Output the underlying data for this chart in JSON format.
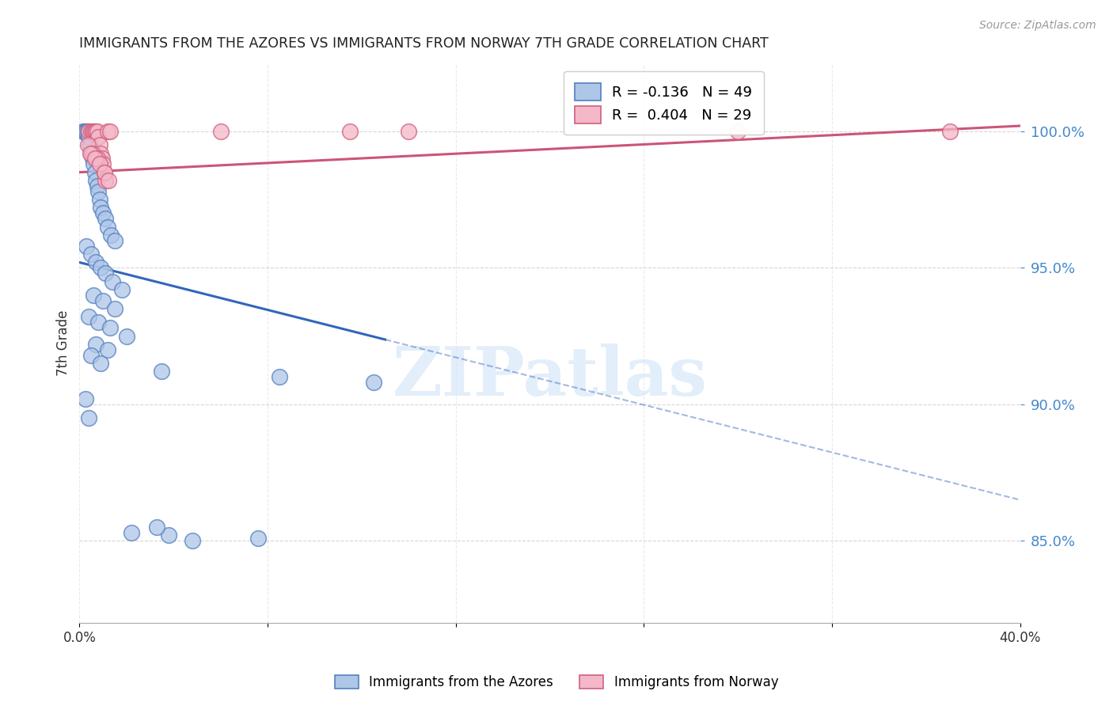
{
  "title": "IMMIGRANTS FROM THE AZORES VS IMMIGRANTS FROM NORWAY 7TH GRADE CORRELATION CHART",
  "source": "Source: ZipAtlas.com",
  "ylabel": "7th Grade",
  "yticks": [
    85.0,
    90.0,
    95.0,
    100.0
  ],
  "ytick_labels": [
    "85.0%",
    "90.0%",
    "95.0%",
    "100.0%"
  ],
  "xlim": [
    0.0,
    40.0
  ],
  "ylim": [
    82.0,
    102.5
  ],
  "legend1_label": "R = -0.136   N = 49",
  "legend2_label": "R =  0.404   N = 29",
  "azores_scatter_color": "#aec6e8",
  "azores_edge_color": "#5580c0",
  "norway_scatter_color": "#f4b8c8",
  "norway_edge_color": "#d06080",
  "trendline_azores_color": "#3366bb",
  "trendline_norway_color": "#cc5577",
  "watermark_color": "#d0e4f8",
  "azores_trendline_x0": 0.0,
  "azores_trendline_y0": 95.2,
  "azores_trendline_x1": 40.0,
  "azores_trendline_y1": 86.5,
  "azores_solid_end": 13.0,
  "norway_trendline_x0": 0.0,
  "norway_trendline_y0": 98.5,
  "norway_trendline_x1": 40.0,
  "norway_trendline_y1": 100.2,
  "azores_x": [
    0.15,
    0.2,
    0.25,
    0.3,
    0.35,
    0.4,
    0.45,
    0.5,
    0.55,
    0.6,
    0.65,
    0.7,
    0.75,
    0.8,
    0.85,
    0.9,
    1.0,
    1.1,
    1.2,
    1.35,
    1.5,
    0.3,
    0.5,
    0.7,
    0.9,
    1.1,
    1.4,
    1.8,
    0.6,
    1.0,
    1.5,
    0.4,
    0.8,
    1.3,
    2.0,
    0.7,
    1.2,
    0.5,
    0.9,
    3.5,
    8.5,
    12.5,
    0.25,
    0.4,
    3.8,
    7.6,
    2.2,
    3.3,
    4.8
  ],
  "azores_y": [
    100.0,
    100.0,
    100.0,
    100.0,
    100.0,
    99.8,
    99.5,
    99.2,
    99.0,
    98.8,
    98.5,
    98.2,
    98.0,
    97.8,
    97.5,
    97.2,
    97.0,
    96.8,
    96.5,
    96.2,
    96.0,
    95.8,
    95.5,
    95.2,
    95.0,
    94.8,
    94.5,
    94.2,
    94.0,
    93.8,
    93.5,
    93.2,
    93.0,
    92.8,
    92.5,
    92.2,
    92.0,
    91.8,
    91.5,
    91.2,
    91.0,
    90.8,
    90.2,
    89.5,
    85.2,
    85.1,
    85.3,
    85.5,
    85.0
  ],
  "norway_x": [
    0.4,
    0.5,
    0.55,
    0.6,
    0.65,
    0.7,
    0.75,
    0.8,
    0.85,
    0.9,
    0.95,
    1.0,
    1.05,
    1.1,
    1.2,
    1.3,
    0.35,
    0.55,
    0.75,
    6.0,
    11.5,
    14.0,
    28.0,
    37.0,
    0.45,
    0.65,
    0.85,
    1.05,
    1.25
  ],
  "norway_y": [
    100.0,
    100.0,
    100.0,
    100.0,
    100.0,
    100.0,
    100.0,
    99.8,
    99.5,
    99.2,
    99.0,
    98.8,
    98.5,
    98.2,
    100.0,
    100.0,
    99.5,
    99.2,
    99.0,
    100.0,
    100.0,
    100.0,
    100.0,
    100.0,
    99.2,
    99.0,
    98.8,
    98.5,
    98.2
  ]
}
